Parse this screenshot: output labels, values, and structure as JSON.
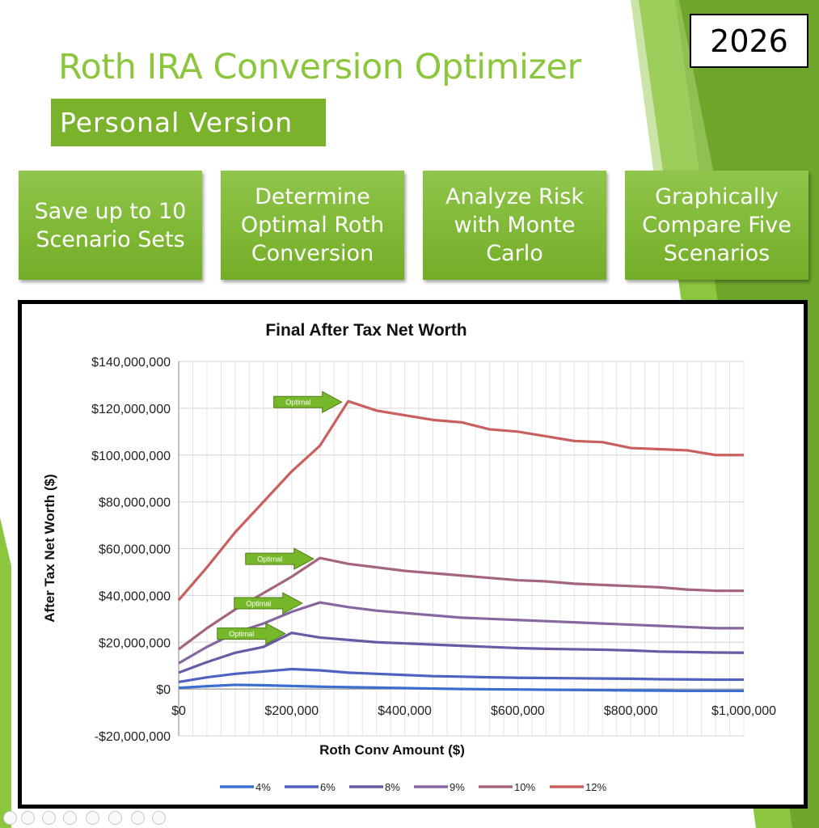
{
  "header": {
    "title": "Roth IRA Conversion Optimizer",
    "subtitle": "Personal Version",
    "year": "2026"
  },
  "features": [
    {
      "label": "Save up to 10 Scenario Sets"
    },
    {
      "label": "Determine Optimal Roth Conversion"
    },
    {
      "label": "Analyze Risk with Monte Carlo"
    },
    {
      "label": "Graphically Compare Five Scenarios"
    }
  ],
  "colors": {
    "brand_green": "#8cc63f",
    "button_green": "#7ab22c",
    "annotation_green": "#77b82a"
  },
  "chart_data": {
    "type": "line",
    "title": "Final After Tax Net Worth",
    "xlabel": "Roth Conv Amount ($)",
    "ylabel": "After Tax Net Worth ($)",
    "xlim": [
      0,
      1000000
    ],
    "ylim": [
      -20000000,
      140000000
    ],
    "grid": true,
    "legend_position": "bottom",
    "x_ticks": [
      {
        "value": 0,
        "label": "$0"
      },
      {
        "value": 200000,
        "label": "$200,000"
      },
      {
        "value": 400000,
        "label": "$400,000"
      },
      {
        "value": 600000,
        "label": "$600,000"
      },
      {
        "value": 800000,
        "label": "$800,000"
      },
      {
        "value": 1000000,
        "label": "$1,000,000"
      }
    ],
    "y_ticks": [
      {
        "value": 140000000,
        "label": "$140,000,000"
      },
      {
        "value": 120000000,
        "label": "$120,000,000"
      },
      {
        "value": 100000000,
        "label": "$100,000,000"
      },
      {
        "value": 80000000,
        "label": "$80,000,000"
      },
      {
        "value": 60000000,
        "label": "$60,000,000"
      },
      {
        "value": 40000000,
        "label": "$40,000,000"
      },
      {
        "value": 20000000,
        "label": "$20,000,000"
      },
      {
        "value": 0,
        "label": "$0"
      },
      {
        "value": -20000000,
        "label": "-$20,000,000"
      }
    ],
    "x": [
      0,
      50000,
      100000,
      150000,
      200000,
      250000,
      300000,
      350000,
      400000,
      450000,
      500000,
      550000,
      600000,
      650000,
      700000,
      750000,
      800000,
      850000,
      900000,
      950000,
      1000000
    ],
    "series": [
      {
        "name": "4%",
        "color": "#3a6fcf",
        "values": [
          0.5,
          1.2,
          1.8,
          1.6,
          1.3,
          1.0,
          0.8,
          0.6,
          0.4,
          0.2,
          0.0,
          -0.1,
          -0.2,
          -0.3,
          -0.4,
          -0.5,
          -0.6,
          -0.7,
          -0.8,
          -0.8,
          -0.8
        ]
      },
      {
        "name": "6%",
        "color": "#4f62bf",
        "values": [
          3.0,
          5.0,
          6.5,
          7.5,
          8.5,
          8.0,
          7.0,
          6.5,
          6.0,
          5.5,
          5.3,
          5.0,
          4.8,
          4.7,
          4.6,
          4.5,
          4.4,
          4.2,
          4.1,
          4.0,
          4.0
        ]
      },
      {
        "name": "8%",
        "color": "#6a5aa6",
        "values": [
          7.0,
          11.5,
          15.5,
          18.0,
          24.0,
          22.0,
          21.0,
          20.0,
          19.5,
          19.0,
          18.5,
          18.0,
          17.5,
          17.2,
          17.0,
          16.8,
          16.5,
          16.0,
          15.8,
          15.6,
          15.5
        ]
      },
      {
        "name": "9%",
        "color": "#86679f",
        "values": [
          11.0,
          18.0,
          24.0,
          28.0,
          33.0,
          37.0,
          35.0,
          33.5,
          32.5,
          31.5,
          30.5,
          30.0,
          29.5,
          29.0,
          28.5,
          28.0,
          27.5,
          27.0,
          26.5,
          26.0,
          26.0
        ]
      },
      {
        "name": "10%",
        "color": "#a5657f",
        "values": [
          17.0,
          26.0,
          34.0,
          41.0,
          48.0,
          56.0,
          53.5,
          52.0,
          50.5,
          49.5,
          48.5,
          47.5,
          46.5,
          46.0,
          45.0,
          44.5,
          44.0,
          43.5,
          42.5,
          42.0,
          42.0
        ]
      },
      {
        "name": "12%",
        "color": "#c9605f",
        "values": [
          38.0,
          52.0,
          67.0,
          80.0,
          93.0,
          104.0,
          123.0,
          119.0,
          117.0,
          115.0,
          114.0,
          111.0,
          110.0,
          108.0,
          106.0,
          105.5,
          103.0,
          102.5,
          102.0,
          100.0,
          100.0
        ]
      }
    ],
    "annotations": [
      {
        "label": "Optimal",
        "series": "12%",
        "x": 300000,
        "y": 123000000
      },
      {
        "label": "Optimal",
        "series": "10%",
        "x": 250000,
        "y": 56000000
      },
      {
        "label": "Optimal",
        "series": "9%",
        "x": 230000,
        "y": 37000000
      },
      {
        "label": "Optimal",
        "series": "8%",
        "x": 200000,
        "y": 24000000
      }
    ]
  }
}
